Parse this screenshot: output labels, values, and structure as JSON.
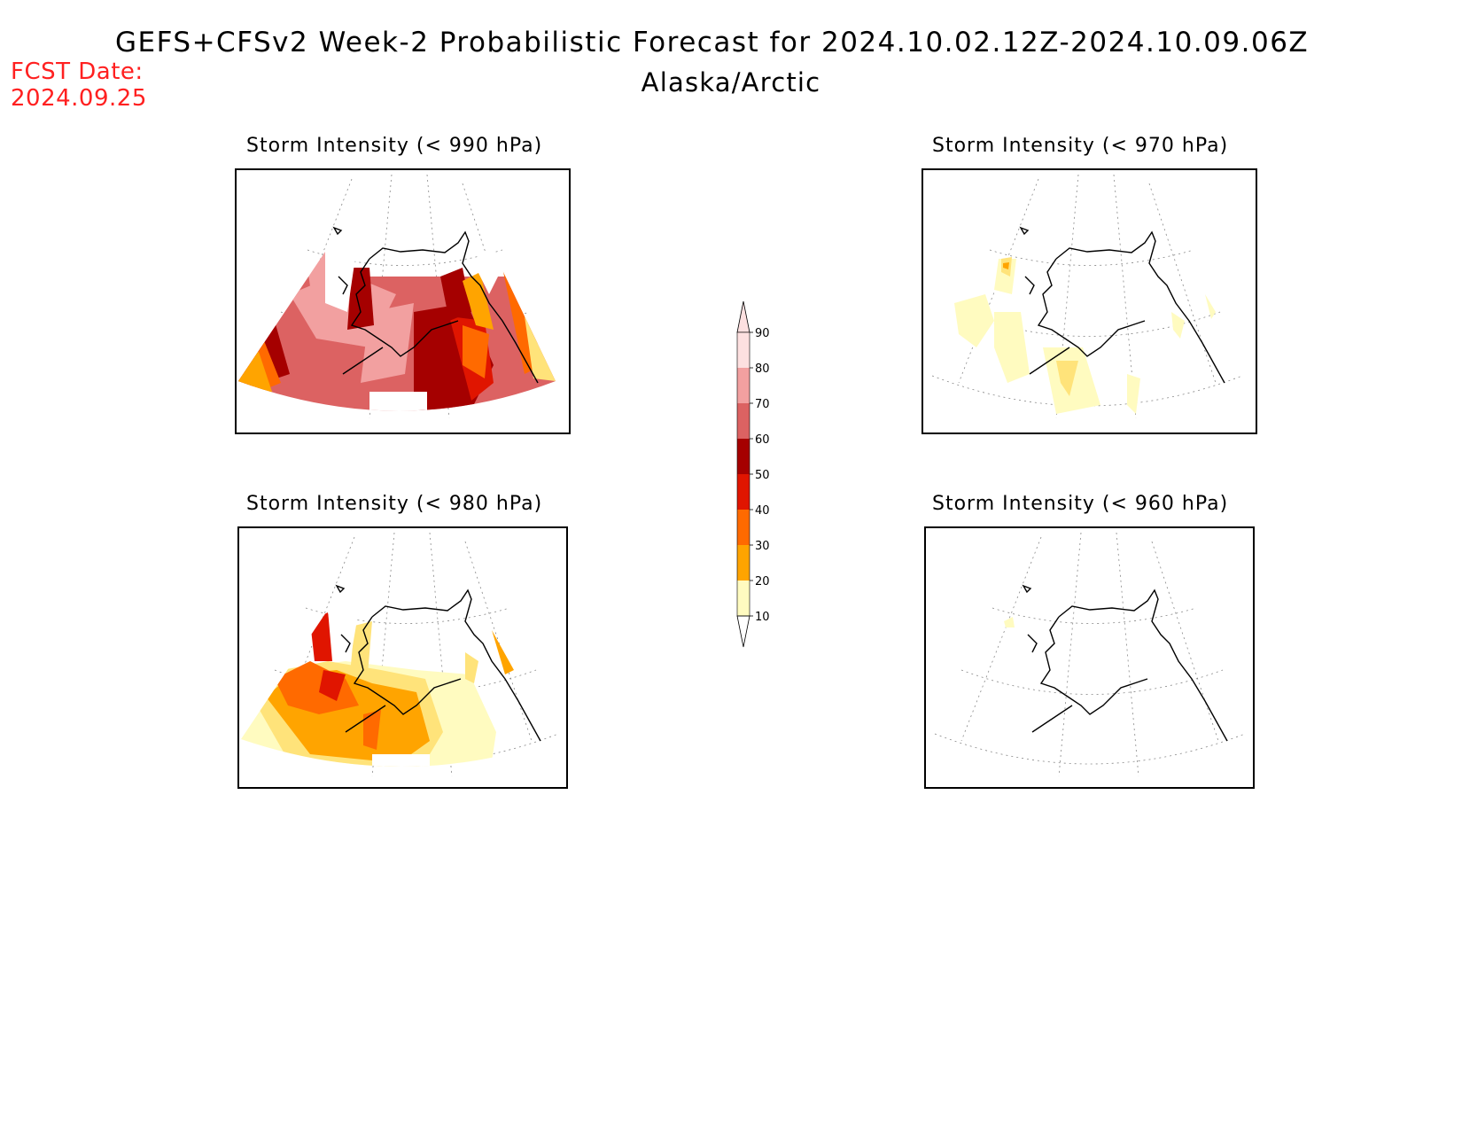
{
  "header": {
    "title": "GEFS+CFSv2 Week-2 Probabilistic Forecast for 2024.10.02.12Z-2024.10.09.06Z",
    "region": "Alaska/Arctic",
    "fcst_label": "FCST Date:",
    "fcst_date": "2024.09.25"
  },
  "panels": [
    {
      "id": "p990",
      "title": "Storm Intensity (< 990 hPa)",
      "coverage": "high"
    },
    {
      "id": "p970",
      "title": "Storm Intensity (< 970 hPa)",
      "coverage": "low"
    },
    {
      "id": "p980",
      "title": "Storm Intensity (< 980 hPa)",
      "coverage": "medium"
    },
    {
      "id": "p960",
      "title": "Storm Intensity (< 960 hPa)",
      "coverage": "minimal"
    }
  ],
  "colorbar": {
    "levels": [
      "10",
      "20",
      "30",
      "40",
      "50",
      "60",
      "70",
      "80",
      "90"
    ],
    "colors": [
      "#fffbc0",
      "#ffe37a",
      "#ffa400",
      "#ff6a00",
      "#e01500",
      "#a50000",
      "#dc6262",
      "#f2a0a0",
      "#fde0e0"
    ]
  }
}
